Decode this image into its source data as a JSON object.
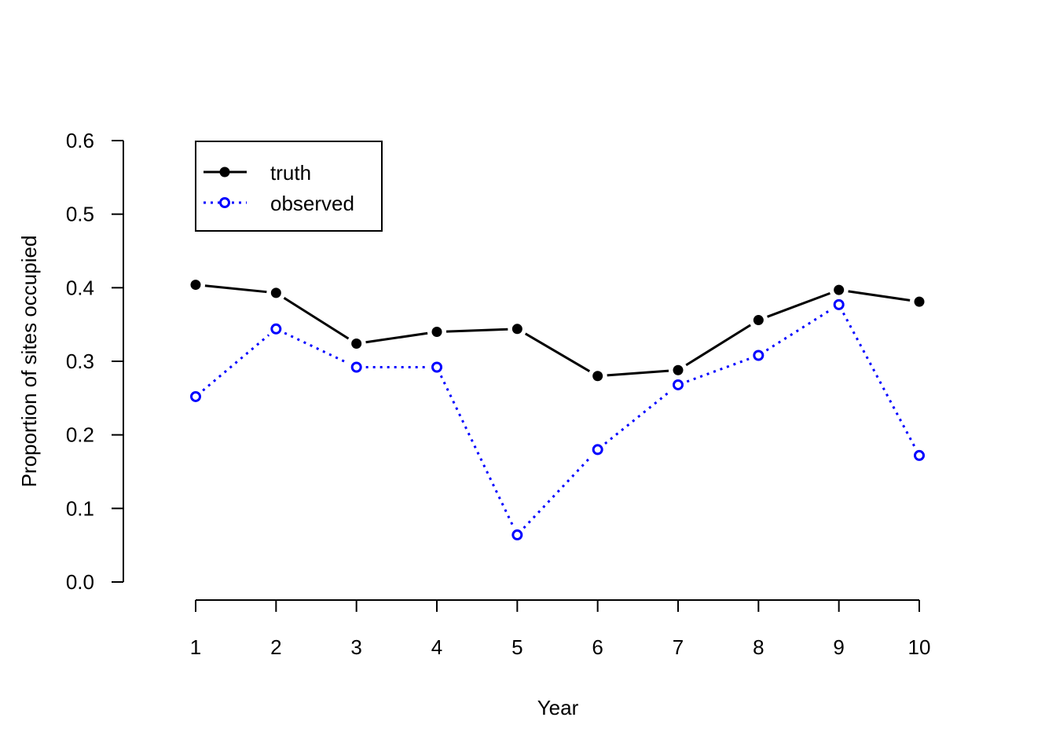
{
  "chart_data": {
    "type": "line",
    "title": "",
    "xlabel": "Year",
    "ylabel": "Proportion of sites occupied",
    "x": [
      1,
      2,
      3,
      4,
      5,
      6,
      7,
      8,
      9,
      10
    ],
    "x_tick_labels": [
      "1",
      "2",
      "3",
      "4",
      "5",
      "6",
      "7",
      "8",
      "9",
      "10"
    ],
    "y_ticks": [
      0.0,
      0.1,
      0.2,
      0.3,
      0.4,
      0.5,
      0.6
    ],
    "y_tick_labels": [
      "0.0",
      "0.1",
      "0.2",
      "0.3",
      "0.4",
      "0.5",
      "0.6"
    ],
    "xlim": [
      1,
      10
    ],
    "ylim": [
      0,
      0.6
    ],
    "grid": false,
    "legend_position": "top-left",
    "series": [
      {
        "name": "truth",
        "color": "#000000",
        "line_style": "dashed",
        "marker": "filled-circle",
        "values": [
          0.404,
          0.393,
          0.324,
          0.34,
          0.344,
          0.28,
          0.288,
          0.356,
          0.397,
          0.381
        ]
      },
      {
        "name": "observed",
        "color": "#0000ff",
        "line_style": "dotted",
        "marker": "open-circle",
        "values": [
          0.252,
          0.344,
          0.292,
          0.292,
          0.064,
          0.18,
          0.268,
          0.308,
          0.377,
          0.172
        ]
      }
    ]
  }
}
